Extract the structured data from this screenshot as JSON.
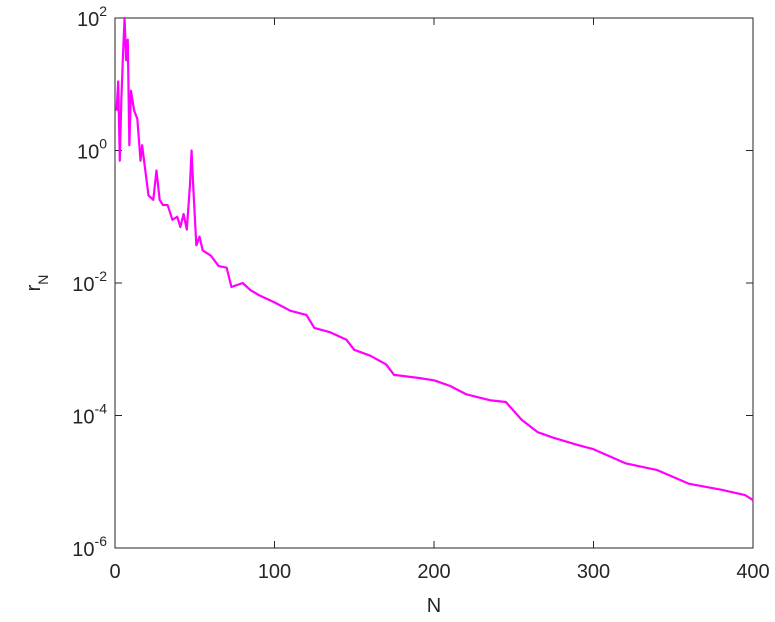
{
  "chart_data": {
    "type": "line",
    "x_label": "N",
    "y_label": {
      "base": "r",
      "sub": "N"
    },
    "log_y": true,
    "xlim": [
      0,
      400
    ],
    "xticks": [
      0,
      100,
      200,
      300,
      400
    ],
    "ylim": [
      1e-06,
      100
    ],
    "yticks": [
      {
        "value": 1e-06,
        "label": {
          "base": "10",
          "exp": "-6"
        }
      },
      {
        "value": 0.0001,
        "label": {
          "base": "10",
          "exp": "-4"
        }
      },
      {
        "value": 0.01,
        "label": {
          "base": "10",
          "exp": "-2"
        }
      },
      {
        "value": 1,
        "label": {
          "base": "10",
          "exp": "0"
        }
      },
      {
        "value": 100,
        "label": {
          "base": "10",
          "exp": "2"
        }
      }
    ],
    "series": [
      {
        "color": "#ff00ff",
        "x": [
          1,
          2,
          3,
          4,
          5,
          6,
          7,
          8,
          9,
          10,
          12,
          14,
          16,
          17,
          19,
          21,
          24,
          26,
          28,
          30,
          33,
          36,
          39,
          41,
          43,
          45,
          47,
          48,
          49,
          51,
          53,
          55,
          60,
          65,
          70,
          73,
          80,
          85,
          90,
          100,
          110,
          120,
          125,
          135,
          145,
          150,
          160,
          170,
          175,
          190,
          200,
          210,
          220,
          235,
          245,
          255,
          265,
          275,
          290,
          300,
          320,
          340,
          360,
          380,
          395,
          400
        ],
        "values": [
          4,
          11,
          0.7,
          6,
          27,
          100,
          23,
          47,
          1.2,
          8,
          4,
          3,
          0.7,
          1.2,
          0.5,
          0.21,
          0.18,
          0.5,
          0.18,
          0.15,
          0.15,
          0.09,
          0.1,
          0.07,
          0.11,
          0.064,
          0.3,
          1.0,
          0.3,
          0.037,
          0.05,
          0.031,
          0.026,
          0.018,
          0.017,
          0.0087,
          0.01,
          0.0078,
          0.0066,
          0.0051,
          0.0038,
          0.0033,
          0.0021,
          0.0018,
          0.0014,
          0.00098,
          0.0008,
          0.00059,
          0.00041,
          0.00037,
          0.00034,
          0.00028,
          0.00021,
          0.00017,
          0.00016,
          8.6e-05,
          5.6e-05,
          4.6e-05,
          3.6e-05,
          3.1e-05,
          1.9e-05,
          1.5e-05,
          9.3e-06,
          7.6e-06,
          6.3e-06,
          5.3e-06
        ]
      }
    ]
  }
}
